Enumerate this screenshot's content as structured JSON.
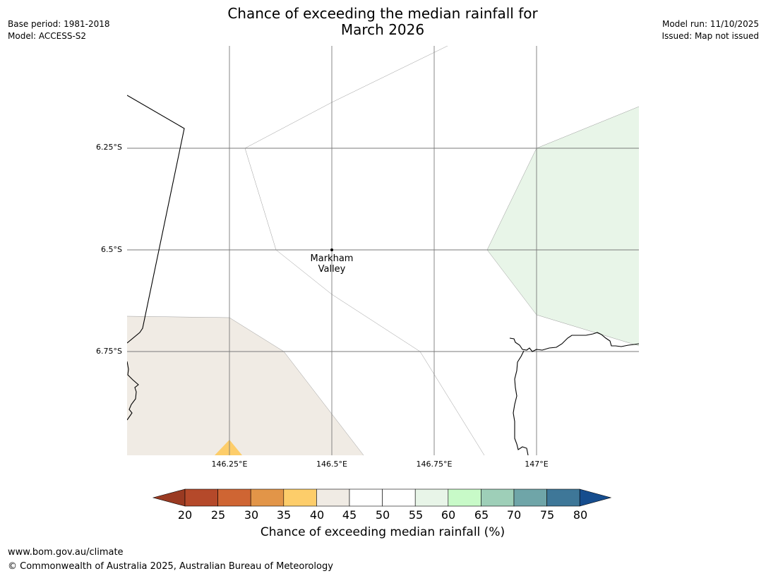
{
  "title": {
    "line1": "Chance of exceeding the median rainfall for",
    "line2": "March 2026"
  },
  "meta_left": {
    "base_period": "Base period: 1981-2018",
    "model": "Model: ACCESS-S2"
  },
  "meta_right": {
    "model_run": "Model run: 11/10/2025",
    "issued": "Issued: Map not issued"
  },
  "map": {
    "latitude_labels": [
      "6.25°S",
      "6.5°S",
      "6.75°S"
    ],
    "longitude_labels": [
      "146.25°E",
      "146.5°E",
      "146.75°E",
      "147°E"
    ],
    "place_label": {
      "line1": "Markham",
      "line2": "Valley"
    },
    "region_colors": {
      "band_40_45": "#f0ebe4",
      "band_35_40": "#fdcd6a",
      "band_55_60": "#e8f5e8"
    }
  },
  "colorbar": {
    "ticks": [
      "20",
      "25",
      "30",
      "35",
      "40",
      "45",
      "50",
      "55",
      "60",
      "65",
      "70",
      "75",
      "80"
    ],
    "colors": [
      "#9a3a22",
      "#b5492a",
      "#cf6533",
      "#e29548",
      "#fdcd6a",
      "#f0ebe4",
      "#ffffff",
      "#ffffff",
      "#e8f5e8",
      "#c8fac8",
      "#9ecfb8",
      "#6fa5a8",
      "#3e7798",
      "#164d8e"
    ],
    "label": "Chance of exceeding median rainfall (%)"
  },
  "footer": {
    "url": "www.bom.gov.au/climate",
    "copyright": "© Commonwealth of Australia 2025, Australian Bureau of Meteorology"
  }
}
